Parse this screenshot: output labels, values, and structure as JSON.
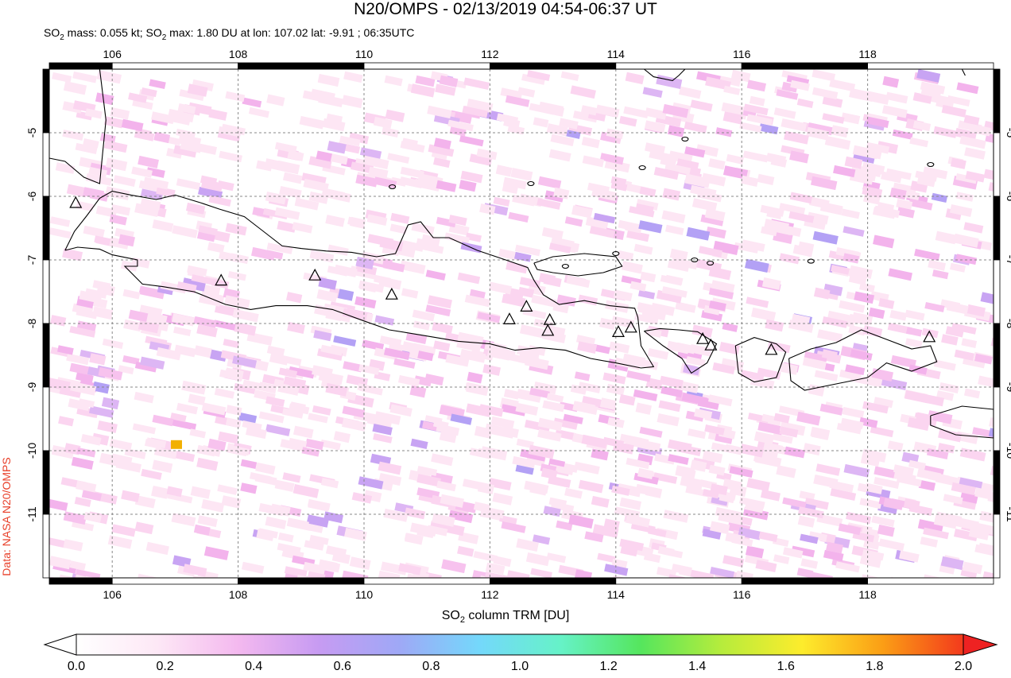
{
  "header": {
    "title": "N20/OMPS - 02/13/2019 04:54-06:37 UT",
    "subtitle_parts": {
      "a": "SO",
      "a_sub": "2",
      "b": " mass: 0.055 kt; SO",
      "b_sub": "2",
      "c": " max: 1.80 DU at lon: 107.02 lat: -9.91 ; 06:35UTC"
    }
  },
  "credit": "Data: NASA N20/OMPS",
  "map": {
    "lon_range": [
      105.0,
      120.0
    ],
    "lat_range": [
      -12.0,
      -4.0
    ],
    "lon_ticks": [
      "106",
      "108",
      "110",
      "112",
      "114",
      "116",
      "118"
    ],
    "lon_tick_values": [
      106,
      108,
      110,
      112,
      114,
      116,
      118
    ],
    "lat_ticks": [
      "-5",
      "-6",
      "-7",
      "-8",
      "-9",
      "-10",
      "-11"
    ],
    "lat_tick_values": [
      -5,
      -6,
      -7,
      -8,
      -9,
      -10,
      -11
    ],
    "grid": "dashed",
    "coastline_color": "#000000",
    "volcano_marker": "triangle-icon",
    "volcanoes": [
      {
        "lon": 105.42,
        "lat": -6.1
      },
      {
        "lon": 107.73,
        "lat": -7.32
      },
      {
        "lon": 109.22,
        "lat": -7.24
      },
      {
        "lon": 110.44,
        "lat": -7.54
      },
      {
        "lon": 112.31,
        "lat": -7.93
      },
      {
        "lon": 112.58,
        "lat": -7.73
      },
      {
        "lon": 112.95,
        "lat": -7.94
      },
      {
        "lon": 112.92,
        "lat": -8.11
      },
      {
        "lon": 114.04,
        "lat": -8.13
      },
      {
        "lon": 114.24,
        "lat": -8.06
      },
      {
        "lon": 115.38,
        "lat": -8.24
      },
      {
        "lon": 115.51,
        "lat": -8.34
      },
      {
        "lon": 116.47,
        "lat": -8.41
      },
      {
        "lon": 118.98,
        "lat": -8.21
      }
    ],
    "max_pixel": {
      "lon": 107.02,
      "lat": -9.91,
      "color": "#f2b000"
    }
  },
  "colorbar": {
    "label_main": "SO",
    "label_sub": "2",
    "label_rest": " column TRM [DU]",
    "ticks": [
      "0.0",
      "0.2",
      "0.4",
      "0.6",
      "0.8",
      "1.0",
      "1.2",
      "1.4",
      "1.6",
      "1.8",
      "2.0"
    ],
    "tick_values": [
      0.0,
      0.2,
      0.4,
      0.6,
      0.8,
      1.0,
      1.2,
      1.4,
      1.6,
      1.8,
      2.0
    ],
    "under_color": "#ffffff",
    "over_color": "#ee2222",
    "stops": [
      "#ffffff",
      "#fde8f6",
      "#f4b9ef",
      "#c79bf2",
      "#9fa8f6",
      "#74d8fb",
      "#66f2c8",
      "#55e65d",
      "#b6ec3c",
      "#fdec2c",
      "#fb9e15",
      "#f33a1c"
    ]
  }
}
